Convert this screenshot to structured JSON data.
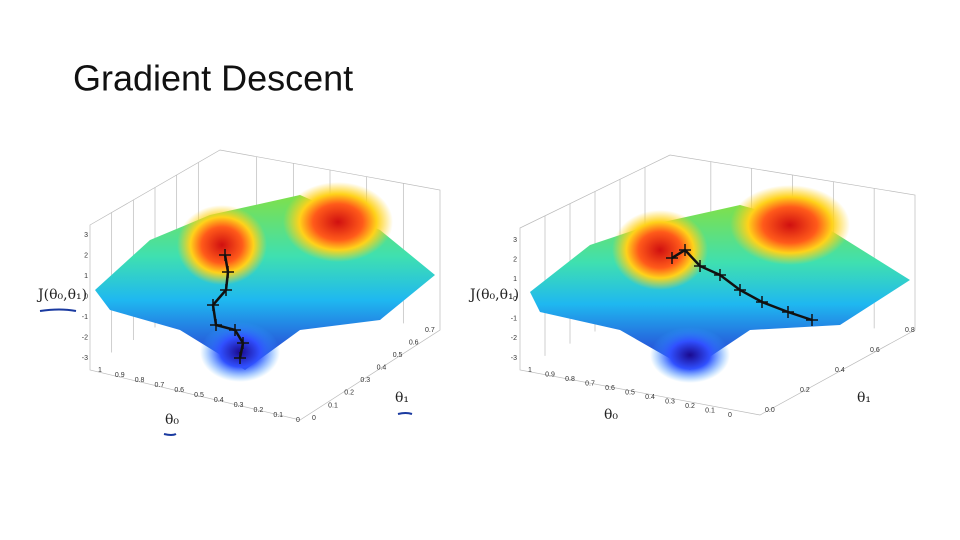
{
  "title": "Gradient Descent",
  "figures": [
    {
      "z_label": "J(θ₀,θ₁)",
      "x_label": "θ₀",
      "y_label": "θ₁",
      "z_ticks": [
        "3",
        "2",
        "1",
        "0",
        "-1",
        "-2",
        "-3"
      ],
      "x_ticks": [
        "1",
        "0.9",
        "0.8",
        "0.7",
        "0.6",
        "0.5",
        "0.4",
        "0.3",
        "0.2",
        "0.1",
        "0"
      ],
      "y_ticks": [
        "0",
        "0.1",
        "0.2",
        "0.3",
        "0.4",
        "0.5",
        "0.6",
        "0.7"
      ]
    },
    {
      "z_label": "J(θ₀,θ₁)",
      "x_label": "θ₀",
      "y_label": "θ₁",
      "z_ticks": [
        "3",
        "2",
        "1",
        "0",
        "-1",
        "-2",
        "-3"
      ],
      "x_ticks": [
        "1",
        "0.9",
        "0.8",
        "0.7",
        "0.6",
        "0.5",
        "0.4",
        "0.3",
        "0.2",
        "0.1",
        "0"
      ],
      "y_ticks": [
        "0.0",
        "0.2",
        "0.4",
        "0.6",
        "0.8"
      ]
    }
  ]
}
